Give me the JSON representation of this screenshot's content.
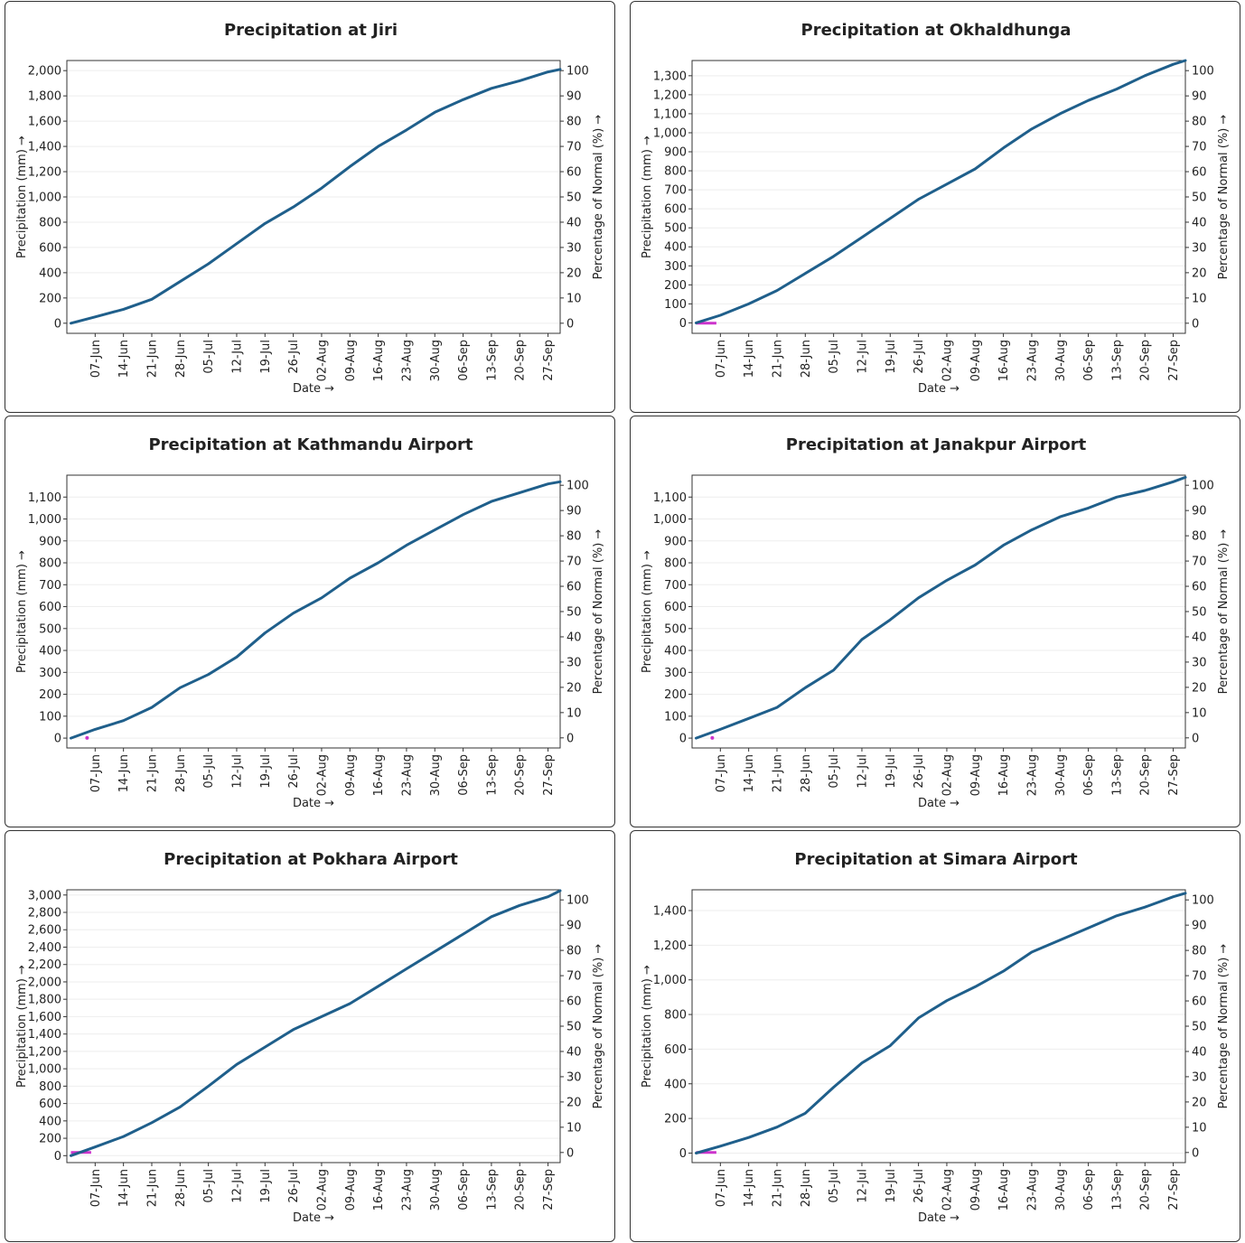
{
  "chart_data": [
    {
      "type": "line",
      "title": "Precipitation at Jiri",
      "xlabel": "Date →",
      "ylabel": "Precipitation (mm) →",
      "y2label": "Percentage of Normal (%) →",
      "xlim": [
        "2024-05-31",
        "2024-09-30"
      ],
      "ylim": [
        -80,
        2080
      ],
      "yticks": [
        0,
        200,
        400,
        600,
        800,
        1000,
        1200,
        1400,
        1600,
        1800,
        2000
      ],
      "y2lim": [
        -4,
        104
      ],
      "y2ticks": [
        0,
        10,
        20,
        30,
        40,
        50,
        60,
        70,
        80,
        90,
        100
      ],
      "x_tick_labels": [
        "07-Jun",
        "14-Jun",
        "21-Jun",
        "28-Jun",
        "05-Jul",
        "12-Jul",
        "19-Jul",
        "26-Jul",
        "02-Aug",
        "09-Aug",
        "16-Aug",
        "23-Aug",
        "30-Aug",
        "06-Sep",
        "13-Sep",
        "20-Sep",
        "27-Sep"
      ],
      "grid": true,
      "series": [
        {
          "x": [
            "2024-06-01",
            "2024-06-07",
            "2024-06-14",
            "2024-06-21",
            "2024-06-28",
            "2024-07-05",
            "2024-07-12",
            "2024-07-19",
            "2024-07-26",
            "2024-08-02",
            "2024-08-09",
            "2024-08-16",
            "2024-08-23",
            "2024-08-30",
            "2024-09-06",
            "2024-09-13",
            "2024-09-20",
            "2024-09-27",
            "2024-09-30"
          ],
          "y": [
            0,
            50,
            110,
            190,
            330,
            470,
            630,
            790,
            920,
            1070,
            1240,
            1400,
            1530,
            1670,
            1770,
            1860,
            1920,
            1990,
            2010
          ]
        }
      ],
      "normal_percent": {
        "x": [],
        "y": []
      }
    },
    {
      "type": "line",
      "title": "Precipitation at Okhaldhunga",
      "xlabel": "Date →",
      "ylabel": "Precipitation (mm) →",
      "y2label": "Percentage of Normal (%) →",
      "xlim": [
        "2024-05-31",
        "2024-09-30"
      ],
      "ylim": [
        -55,
        1380
      ],
      "yticks": [
        0,
        100,
        200,
        300,
        400,
        500,
        600,
        700,
        800,
        900,
        1000,
        1100,
        1200,
        1300
      ],
      "y2lim": [
        -4,
        104
      ],
      "y2ticks": [
        0,
        10,
        20,
        30,
        40,
        50,
        60,
        70,
        80,
        90,
        100
      ],
      "x_tick_labels": [
        "07-Jun",
        "14-Jun",
        "21-Jun",
        "28-Jun",
        "05-Jul",
        "12-Jul",
        "19-Jul",
        "26-Jul",
        "02-Aug",
        "09-Aug",
        "16-Aug",
        "23-Aug",
        "30-Aug",
        "06-Sep",
        "13-Sep",
        "20-Sep",
        "27-Sep"
      ],
      "grid": true,
      "series": [
        {
          "x": [
            "2024-06-01",
            "2024-06-07",
            "2024-06-14",
            "2024-06-21",
            "2024-06-28",
            "2024-07-05",
            "2024-07-12",
            "2024-07-19",
            "2024-07-26",
            "2024-08-02",
            "2024-08-09",
            "2024-08-16",
            "2024-08-23",
            "2024-08-30",
            "2024-09-06",
            "2024-09-13",
            "2024-09-20",
            "2024-09-27",
            "2024-09-30"
          ],
          "y": [
            0,
            40,
            100,
            170,
            260,
            350,
            450,
            550,
            650,
            730,
            810,
            920,
            1020,
            1100,
            1170,
            1230,
            1300,
            1360,
            1380
          ]
        }
      ],
      "normal_percent": {
        "x": [
          "2024-06-01",
          "2024-06-06"
        ],
        "y": [
          0,
          0
        ]
      }
    },
    {
      "type": "line",
      "title": "Precipitation at Kathmandu Airport",
      "xlabel": "Date →",
      "ylabel": "Precipitation (mm) →",
      "y2label": "Percentage of Normal (%) →",
      "xlim": [
        "2024-05-31",
        "2024-09-30"
      ],
      "ylim": [
        -45,
        1200
      ],
      "yticks": [
        0,
        100,
        200,
        300,
        400,
        500,
        600,
        700,
        800,
        900,
        1000,
        1100
      ],
      "y2lim": [
        -4,
        104
      ],
      "y2ticks": [
        0,
        10,
        20,
        30,
        40,
        50,
        60,
        70,
        80,
        90,
        100
      ],
      "x_tick_labels": [
        "07-Jun",
        "14-Jun",
        "21-Jun",
        "28-Jun",
        "05-Jul",
        "12-Jul",
        "19-Jul",
        "26-Jul",
        "02-Aug",
        "09-Aug",
        "16-Aug",
        "23-Aug",
        "30-Aug",
        "06-Sep",
        "13-Sep",
        "20-Sep",
        "27-Sep"
      ],
      "grid": true,
      "series": [
        {
          "x": [
            "2024-06-01",
            "2024-06-07",
            "2024-06-14",
            "2024-06-21",
            "2024-06-28",
            "2024-07-05",
            "2024-07-12",
            "2024-07-19",
            "2024-07-26",
            "2024-08-02",
            "2024-08-09",
            "2024-08-16",
            "2024-08-23",
            "2024-08-30",
            "2024-09-06",
            "2024-09-13",
            "2024-09-20",
            "2024-09-27",
            "2024-09-30"
          ],
          "y": [
            0,
            40,
            80,
            140,
            230,
            290,
            370,
            480,
            570,
            640,
            730,
            800,
            880,
            950,
            1020,
            1080,
            1120,
            1160,
            1170
          ]
        }
      ],
      "normal_percent": {
        "x": [
          "2024-06-05"
        ],
        "y": [
          0
        ]
      }
    },
    {
      "type": "line",
      "title": "Precipitation at Janakpur Airport",
      "xlabel": "Date →",
      "ylabel": "Precipitation (mm) →",
      "y2label": "Percentage of Normal (%) →",
      "xlim": [
        "2024-05-31",
        "2024-09-30"
      ],
      "ylim": [
        -45,
        1200
      ],
      "yticks": [
        0,
        100,
        200,
        300,
        400,
        500,
        600,
        700,
        800,
        900,
        1000,
        1100
      ],
      "y2lim": [
        -4,
        104
      ],
      "y2ticks": [
        0,
        10,
        20,
        30,
        40,
        50,
        60,
        70,
        80,
        90,
        100
      ],
      "x_tick_labels": [
        "07-Jun",
        "14-Jun",
        "21-Jun",
        "28-Jun",
        "05-Jul",
        "12-Jul",
        "19-Jul",
        "26-Jul",
        "02-Aug",
        "09-Aug",
        "16-Aug",
        "23-Aug",
        "30-Aug",
        "06-Sep",
        "13-Sep",
        "20-Sep",
        "27-Sep"
      ],
      "grid": true,
      "series": [
        {
          "x": [
            "2024-06-01",
            "2024-06-07",
            "2024-06-14",
            "2024-06-21",
            "2024-06-28",
            "2024-07-05",
            "2024-07-12",
            "2024-07-19",
            "2024-07-26",
            "2024-08-02",
            "2024-08-09",
            "2024-08-16",
            "2024-08-23",
            "2024-08-30",
            "2024-09-06",
            "2024-09-13",
            "2024-09-20",
            "2024-09-27",
            "2024-09-30"
          ],
          "y": [
            0,
            40,
            90,
            140,
            230,
            310,
            450,
            540,
            640,
            720,
            790,
            880,
            950,
            1010,
            1050,
            1100,
            1130,
            1170,
            1190
          ]
        }
      ],
      "normal_percent": {
        "x": [
          "2024-06-05"
        ],
        "y": [
          0
        ]
      }
    },
    {
      "type": "line",
      "title": "Precipitation at Pokhara Airport",
      "xlabel": "Date →",
      "ylabel": "Precipitation (mm) →",
      "y2label": "Percentage of Normal (%) →",
      "xlim": [
        "2024-05-31",
        "2024-09-30"
      ],
      "ylim": [
        -80,
        3060
      ],
      "yticks": [
        0,
        200,
        400,
        600,
        800,
        1000,
        1200,
        1400,
        1600,
        1800,
        2000,
        2200,
        2400,
        2600,
        2800,
        3000
      ],
      "y2lim": [
        -4,
        104
      ],
      "y2ticks": [
        0,
        10,
        20,
        30,
        40,
        50,
        60,
        70,
        80,
        90,
        100
      ],
      "x_tick_labels": [
        "07-Jun",
        "14-Jun",
        "21-Jun",
        "28-Jun",
        "05-Jul",
        "12-Jul",
        "19-Jul",
        "26-Jul",
        "02-Aug",
        "09-Aug",
        "16-Aug",
        "23-Aug",
        "30-Aug",
        "06-Sep",
        "13-Sep",
        "20-Sep",
        "27-Sep"
      ],
      "grid": true,
      "series": [
        {
          "x": [
            "2024-06-01",
            "2024-06-07",
            "2024-06-14",
            "2024-06-21",
            "2024-06-28",
            "2024-07-05",
            "2024-07-12",
            "2024-07-19",
            "2024-07-26",
            "2024-08-02",
            "2024-08-09",
            "2024-08-16",
            "2024-08-23",
            "2024-08-30",
            "2024-09-06",
            "2024-09-13",
            "2024-09-20",
            "2024-09-27",
            "2024-09-30"
          ],
          "y": [
            0,
            100,
            220,
            380,
            560,
            800,
            1050,
            1250,
            1450,
            1600,
            1750,
            1950,
            2150,
            2350,
            2550,
            2750,
            2880,
            2980,
            3050
          ]
        }
      ],
      "normal_percent": {
        "x": [
          "2024-06-01",
          "2024-06-06"
        ],
        "y": [
          0,
          0
        ]
      }
    },
    {
      "type": "line",
      "title": "Precipitation at Simara Airport",
      "xlabel": "Date →",
      "ylabel": "Precipitation (mm) →",
      "y2label": "Percentage of Normal (%) →",
      "xlim": [
        "2024-05-31",
        "2024-09-30"
      ],
      "ylim": [
        -55,
        1520
      ],
      "yticks": [
        0,
        200,
        400,
        600,
        800,
        1000,
        1200,
        1400
      ],
      "y2lim": [
        -4,
        104
      ],
      "y2ticks": [
        0,
        10,
        20,
        30,
        40,
        50,
        60,
        70,
        80,
        90,
        100
      ],
      "x_tick_labels": [
        "07-Jun",
        "14-Jun",
        "21-Jun",
        "28-Jun",
        "05-Jul",
        "12-Jul",
        "19-Jul",
        "26-Jul",
        "02-Aug",
        "09-Aug",
        "16-Aug",
        "23-Aug",
        "30-Aug",
        "06-Sep",
        "13-Sep",
        "20-Sep",
        "27-Sep"
      ],
      "grid": true,
      "series": [
        {
          "x": [
            "2024-06-01",
            "2024-06-07",
            "2024-06-14",
            "2024-06-21",
            "2024-06-28",
            "2024-07-05",
            "2024-07-12",
            "2024-07-19",
            "2024-07-26",
            "2024-08-02",
            "2024-08-09",
            "2024-08-16",
            "2024-08-23",
            "2024-08-30",
            "2024-09-06",
            "2024-09-13",
            "2024-09-20",
            "2024-09-27",
            "2024-09-30"
          ],
          "y": [
            0,
            40,
            90,
            150,
            230,
            380,
            520,
            620,
            780,
            880,
            960,
            1050,
            1160,
            1230,
            1300,
            1370,
            1420,
            1480,
            1500
          ]
        }
      ],
      "normal_percent": {
        "x": [
          "2024-06-01",
          "2024-06-06"
        ],
        "y": [
          0,
          0
        ]
      }
    }
  ],
  "colors": {
    "line": "#1f5f8b",
    "normal": "#cc33cc",
    "grid": "#eeeeee",
    "frame": "#333333"
  }
}
